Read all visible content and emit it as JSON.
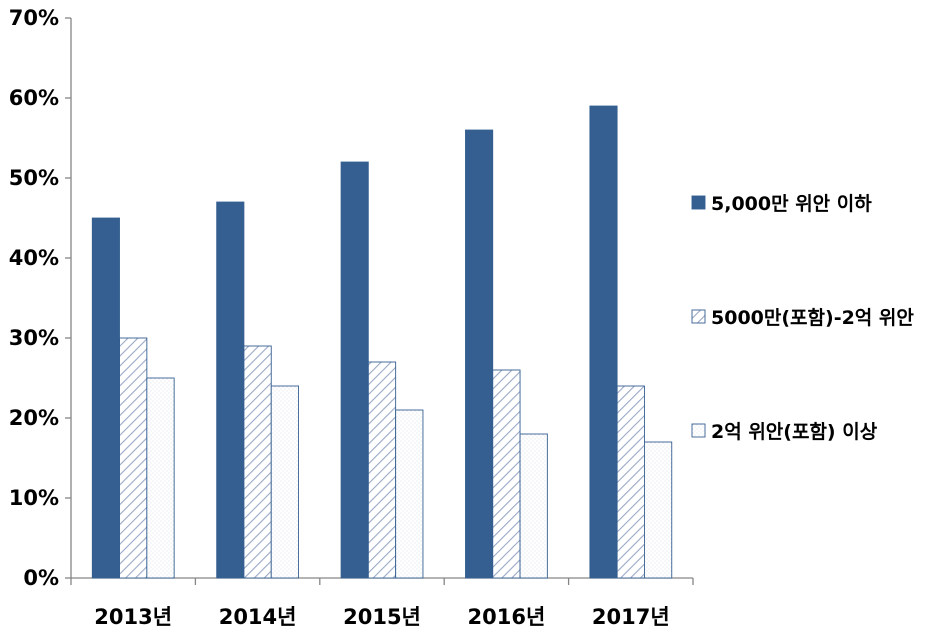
{
  "chart_data": {
    "type": "bar",
    "categories": [
      "2013년",
      "2014년",
      "2015년",
      "2016년",
      "2017년"
    ],
    "series": [
      {
        "name": "5,000만 위안 이하",
        "values": [
          45,
          47,
          52,
          56,
          59
        ],
        "color": "#355f91",
        "pattern": "solid"
      },
      {
        "name": "5000만(포함)-2억 위안",
        "values": [
          30,
          29,
          27,
          26,
          24
        ],
        "color": "#355f91",
        "pattern": "diagonal-hatch"
      },
      {
        "name": "2억 위안(포함) 이상",
        "values": [
          25,
          24,
          21,
          18,
          17
        ],
        "color": "#355f91",
        "pattern": "dotted"
      }
    ],
    "ylim": [
      0,
      70
    ],
    "yticks": [
      "0%",
      "10%",
      "20%",
      "30%",
      "40%",
      "50%",
      "60%",
      "70%"
    ],
    "title": "",
    "xlabel": "",
    "ylabel": "",
    "grid": false,
    "legend_position": "right"
  }
}
